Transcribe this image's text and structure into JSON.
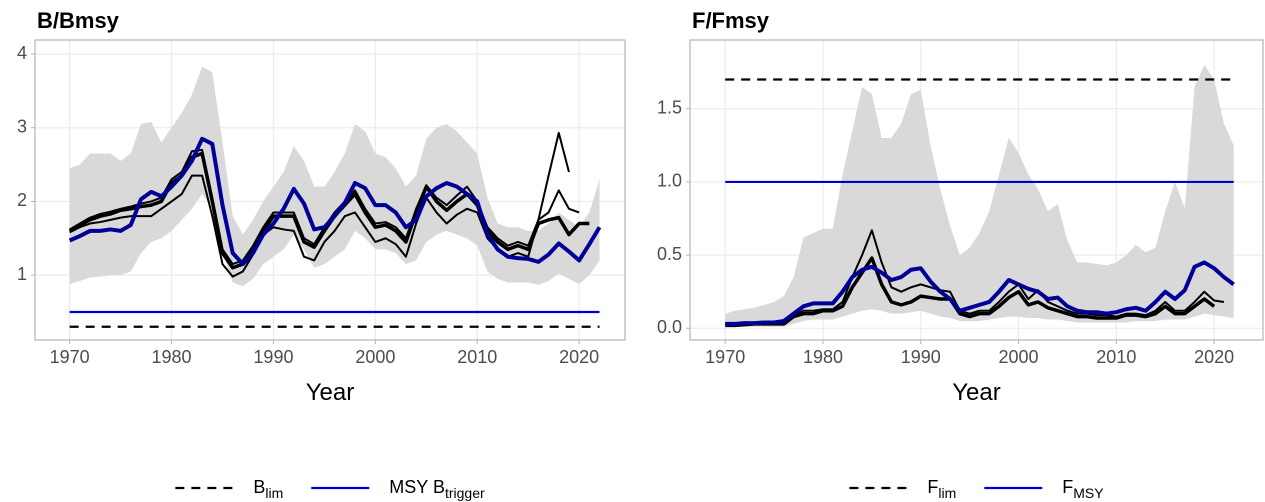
{
  "chart_data": [
    {
      "type": "line",
      "title": "B/Bmsy",
      "x_label": "Year",
      "x": [
        1970,
        1971,
        1972,
        1973,
        1974,
        1975,
        1976,
        1977,
        1978,
        1979,
        1980,
        1981,
        1982,
        1983,
        1984,
        1985,
        1986,
        1987,
        1988,
        1989,
        1990,
        1991,
        1992,
        1993,
        1994,
        1995,
        1996,
        1997,
        1998,
        1999,
        2000,
        2001,
        2002,
        2003,
        2004,
        2005,
        2006,
        2007,
        2008,
        2009,
        2010,
        2011,
        2012,
        2013,
        2014,
        2015,
        2016,
        2017,
        2018,
        2019,
        2020,
        2021,
        2022
      ],
      "xlim": [
        1966.6,
        2024.5
      ],
      "xticks": [
        1970,
        1980,
        1990,
        2000,
        2010,
        2020
      ],
      "ylim": [
        0.12,
        4.19
      ],
      "yticks": [
        1,
        2,
        3,
        4
      ],
      "grid": true,
      "legend_position": "bottom",
      "band": {
        "color": "#d9d9d9",
        "upper": [
          2.45,
          2.5,
          2.65,
          2.65,
          2.65,
          2.55,
          2.65,
          3.05,
          3.08,
          2.8,
          3.0,
          3.2,
          3.45,
          3.83,
          3.75,
          2.8,
          1.8,
          1.55,
          1.75,
          2.0,
          2.2,
          2.4,
          2.75,
          2.55,
          2.2,
          2.2,
          2.4,
          2.65,
          3.05,
          2.95,
          2.65,
          2.6,
          2.45,
          2.2,
          2.35,
          2.85,
          3.0,
          3.05,
          2.95,
          2.8,
          2.65,
          2.05,
          1.7,
          1.65,
          1.65,
          1.6,
          1.6,
          1.7,
          1.85,
          1.75,
          1.65,
          1.85,
          2.3
        ],
        "lower": [
          0.88,
          0.92,
          0.97,
          0.98,
          1.0,
          1.0,
          1.05,
          1.3,
          1.45,
          1.5,
          1.6,
          1.75,
          1.9,
          2.1,
          1.9,
          1.3,
          0.9,
          0.85,
          0.95,
          1.15,
          1.25,
          1.35,
          1.55,
          1.35,
          1.1,
          1.15,
          1.25,
          1.35,
          1.6,
          1.5,
          1.35,
          1.35,
          1.3,
          1.15,
          1.2,
          1.45,
          1.55,
          1.6,
          1.55,
          1.5,
          1.4,
          1.05,
          0.95,
          0.9,
          0.9,
          0.9,
          0.87,
          0.92,
          1.02,
          0.95,
          0.88,
          1.0,
          1.2
        ]
      },
      "series": [
        {
          "color": "#000000",
          "width": 3.5,
          "values": [
            1.6,
            1.68,
            1.75,
            1.8,
            1.83,
            1.88,
            1.9,
            1.93,
            1.95,
            2.0,
            2.25,
            2.35,
            2.6,
            2.65,
            2.0,
            1.3,
            1.1,
            1.15,
            1.35,
            1.6,
            1.8,
            1.8,
            1.8,
            1.45,
            1.38,
            1.6,
            1.8,
            1.95,
            2.1,
            1.85,
            1.65,
            1.68,
            1.6,
            1.45,
            1.85,
            2.2,
            2.0,
            1.88,
            2.0,
            2.1,
            1.95,
            1.6,
            1.45,
            1.35,
            1.4,
            1.35,
            1.7,
            1.75,
            1.78,
            1.55,
            1.7,
            1.7,
            null
          ]
        },
        {
          "color": "#000000",
          "width": 2,
          "values": [
            1.58,
            1.65,
            1.7,
            1.72,
            1.75,
            1.78,
            1.8,
            1.8,
            1.8,
            1.9,
            2.0,
            2.1,
            2.35,
            2.35,
            1.8,
            1.15,
            0.98,
            1.05,
            1.28,
            1.55,
            1.65,
            1.62,
            1.6,
            1.25,
            1.2,
            1.45,
            1.6,
            1.8,
            1.85,
            1.65,
            1.45,
            1.5,
            1.42,
            1.25,
            1.7,
            2.05,
            1.85,
            1.7,
            1.82,
            1.9,
            1.85,
            1.5,
            1.35,
            1.25,
            1.3,
            1.25,
            1.75,
            2.35,
            2.93,
            2.4,
            null,
            null,
            null
          ]
        },
        {
          "color": "#000000",
          "width": 2,
          "values": [
            1.62,
            1.7,
            1.78,
            1.83,
            1.86,
            1.9,
            1.93,
            1.97,
            2.0,
            2.05,
            2.3,
            2.4,
            2.68,
            2.7,
            2.05,
            1.35,
            1.15,
            1.2,
            1.4,
            1.65,
            1.85,
            1.85,
            1.85,
            1.5,
            1.42,
            1.65,
            1.85,
            2.0,
            2.15,
            1.9,
            1.7,
            1.72,
            1.65,
            1.5,
            1.9,
            2.22,
            2.05,
            1.95,
            2.08,
            2.2,
            2.0,
            1.65,
            1.5,
            1.4,
            1.45,
            1.4,
            1.75,
            1.85,
            2.15,
            1.9,
            1.85,
            null,
            null
          ]
        },
        {
          "color": "#000099",
          "width": 4,
          "values": [
            1.47,
            1.53,
            1.6,
            1.6,
            1.62,
            1.6,
            1.68,
            2.03,
            2.13,
            2.07,
            2.2,
            2.35,
            2.55,
            2.85,
            2.78,
            1.95,
            1.3,
            1.15,
            1.3,
            1.55,
            1.7,
            1.9,
            2.17,
            1.97,
            1.62,
            1.65,
            1.8,
            1.98,
            2.25,
            2.18,
            1.95,
            1.95,
            1.85,
            1.65,
            1.75,
            2.07,
            2.18,
            2.25,
            2.2,
            2.1,
            2.0,
            1.55,
            1.35,
            1.25,
            1.23,
            1.22,
            1.18,
            1.28,
            1.43,
            1.32,
            1.2,
            1.42,
            1.65
          ]
        }
      ],
      "hlines": [
        {
          "name": "B",
          "subscript": "lim",
          "value": 0.3,
          "color": "#000000",
          "dash": true
        },
        {
          "name": "MSY B",
          "subscript": "trigger",
          "value": 0.5,
          "color": "#0000cc",
          "dash": false
        }
      ]
    },
    {
      "type": "line",
      "title": "F/Fmsy",
      "x_label": "Year",
      "x": [
        1970,
        1971,
        1972,
        1973,
        1974,
        1975,
        1976,
        1977,
        1978,
        1979,
        1980,
        1981,
        1982,
        1983,
        1984,
        1985,
        1986,
        1987,
        1988,
        1989,
        1990,
        1991,
        1992,
        1993,
        1994,
        1995,
        1996,
        1997,
        1998,
        1999,
        2000,
        2001,
        2002,
        2003,
        2004,
        2005,
        2006,
        2007,
        2008,
        2009,
        2010,
        2011,
        2012,
        2013,
        2014,
        2015,
        2016,
        2017,
        2018,
        2019,
        2020,
        2021,
        2022
      ],
      "xlim": [
        1966.4,
        2025.0
      ],
      "xticks": [
        1970,
        1980,
        1990,
        2000,
        2010,
        2020
      ],
      "ylim": [
        -0.08,
        1.97
      ],
      "yticks": [
        {
          "value": 0,
          "label": "0.0"
        },
        0.5,
        {
          "value": 1,
          "label": "1.0"
        },
        1.5
      ],
      "grid": true,
      "legend_position": "bottom",
      "band": {
        "color": "#d9d9d9",
        "upper": [
          0.1,
          0.12,
          0.13,
          0.14,
          0.16,
          0.18,
          0.22,
          0.35,
          0.62,
          0.65,
          0.68,
          0.68,
          1.05,
          1.35,
          1.65,
          1.6,
          1.3,
          1.3,
          1.4,
          1.6,
          1.63,
          1.25,
          0.95,
          0.7,
          0.5,
          0.55,
          0.65,
          0.8,
          1.05,
          1.3,
          1.2,
          1.05,
          0.95,
          0.8,
          0.85,
          0.6,
          0.45,
          0.45,
          0.44,
          0.43,
          0.45,
          0.5,
          0.57,
          0.52,
          0.55,
          0.8,
          1.0,
          0.82,
          1.65,
          1.8,
          1.7,
          1.4,
          1.25
        ],
        "lower": [
          0.01,
          0.01,
          0.01,
          0.01,
          0.01,
          0.01,
          0.01,
          0.03,
          0.05,
          0.06,
          0.06,
          0.06,
          0.08,
          0.1,
          0.12,
          0.13,
          0.12,
          0.1,
          0.1,
          0.11,
          0.12,
          0.1,
          0.08,
          0.07,
          0.05,
          0.05,
          0.05,
          0.06,
          0.07,
          0.08,
          0.08,
          0.07,
          0.07,
          0.06,
          0.06,
          0.05,
          0.04,
          0.04,
          0.04,
          0.04,
          0.04,
          0.04,
          0.05,
          0.05,
          0.05,
          0.06,
          0.06,
          0.06,
          0.08,
          0.1,
          0.09,
          0.08,
          0.07
        ]
      },
      "series": [
        {
          "color": "#000000",
          "width": 3.5,
          "values": [
            0.02,
            0.02,
            0.025,
            0.03,
            0.03,
            0.03,
            0.03,
            0.08,
            0.1,
            0.1,
            0.12,
            0.12,
            0.15,
            0.28,
            0.38,
            0.48,
            0.3,
            0.18,
            0.16,
            0.18,
            0.22,
            0.21,
            0.2,
            0.2,
            0.1,
            0.08,
            0.1,
            0.1,
            0.15,
            0.21,
            0.25,
            0.16,
            0.18,
            0.14,
            0.12,
            0.1,
            0.08,
            0.08,
            0.07,
            0.07,
            0.07,
            0.09,
            0.09,
            0.08,
            0.1,
            0.15,
            0.1,
            0.1,
            0.15,
            0.2,
            0.15,
            null,
            null
          ]
        },
        {
          "color": "#000000",
          "width": 2,
          "values": [
            0.03,
            0.03,
            0.03,
            0.035,
            0.035,
            0.04,
            0.04,
            0.09,
            0.12,
            0.12,
            0.13,
            0.13,
            0.18,
            0.35,
            0.5,
            0.67,
            0.45,
            0.28,
            0.25,
            0.28,
            0.3,
            0.28,
            0.26,
            0.25,
            0.12,
            0.1,
            0.12,
            0.12,
            0.18,
            0.25,
            0.3,
            0.2,
            0.26,
            0.18,
            0.15,
            0.12,
            0.1,
            0.1,
            0.09,
            0.09,
            0.08,
            0.1,
            0.1,
            0.09,
            0.12,
            0.18,
            0.12,
            0.12,
            0.18,
            0.25,
            0.19,
            0.18,
            null
          ]
        },
        {
          "color": "#000099",
          "width": 4,
          "values": [
            0.03,
            0.03,
            0.035,
            0.035,
            0.04,
            0.04,
            0.05,
            0.1,
            0.15,
            0.17,
            0.17,
            0.17,
            0.25,
            0.35,
            0.4,
            0.42,
            0.38,
            0.33,
            0.35,
            0.4,
            0.41,
            0.32,
            0.25,
            0.2,
            0.12,
            0.14,
            0.16,
            0.18,
            0.25,
            0.33,
            0.3,
            0.27,
            0.25,
            0.2,
            0.21,
            0.15,
            0.12,
            0.11,
            0.11,
            0.1,
            0.11,
            0.13,
            0.14,
            0.12,
            0.18,
            0.25,
            0.2,
            0.26,
            0.42,
            0.45,
            0.41,
            0.35,
            0.3
          ]
        }
      ],
      "hlines": [
        {
          "name": "F",
          "subscript": "lim",
          "value": 1.7,
          "color": "#000000",
          "dash": true
        },
        {
          "name": "F",
          "subscript": "MSY",
          "value": 1.0,
          "color": "#0000cc",
          "dash": false
        }
      ]
    }
  ]
}
